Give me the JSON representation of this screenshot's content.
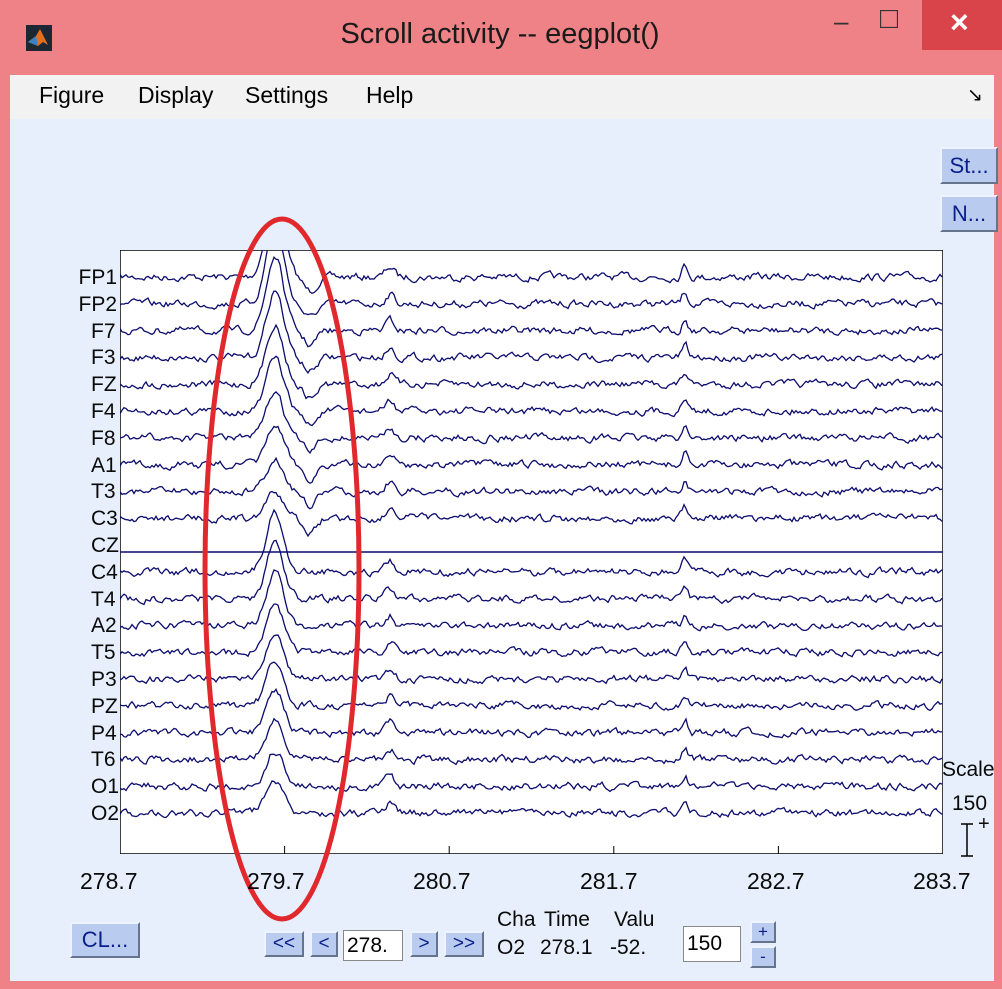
{
  "window": {
    "title": "Scroll activity -- eegplot()",
    "minimize_glyph": "–",
    "maximize_glyph": "□",
    "close_glyph": "×"
  },
  "menu": [
    "Figure",
    "Display",
    "Settings",
    "Help"
  ],
  "toolbar_arrow": "↘",
  "buttons": {
    "st": "St...",
    "n": "N...",
    "cl": "CL..."
  },
  "channels": [
    "FP1",
    "FP2",
    "F7",
    "F3",
    "FZ",
    "F4",
    "F8",
    "A1",
    "T3",
    "C3",
    "CZ",
    "C4",
    "T4",
    "A2",
    "T5",
    "P3",
    "PZ",
    "P4",
    "T6",
    "O1",
    "O2"
  ],
  "x_ticks": [
    "278.7",
    "279.7",
    "280.7",
    "281.7",
    "282.7",
    "283.7"
  ],
  "scale": {
    "label": "Scale",
    "value": "150",
    "marker": "+"
  },
  "nav": {
    "first": "<<",
    "prev": "<",
    "position": "278.",
    "next": ">",
    "last": ">>"
  },
  "readout": {
    "chan_header": "Cha",
    "time_header": "Time",
    "value_header": "Valu",
    "chan_value": "O2",
    "time_value": "278.1",
    "value_value": "-52."
  },
  "spacing_value": "150",
  "spacing_buttons": {
    "plus": "+",
    "minus": "-"
  },
  "colors": {
    "trace": "#0c0c6e",
    "annotation": "#e0282d",
    "titlebar": "#ee8286",
    "close": "#d9444b",
    "button": "#b9ccef"
  },
  "icons": {
    "app": "matlab-logo-icon"
  }
}
